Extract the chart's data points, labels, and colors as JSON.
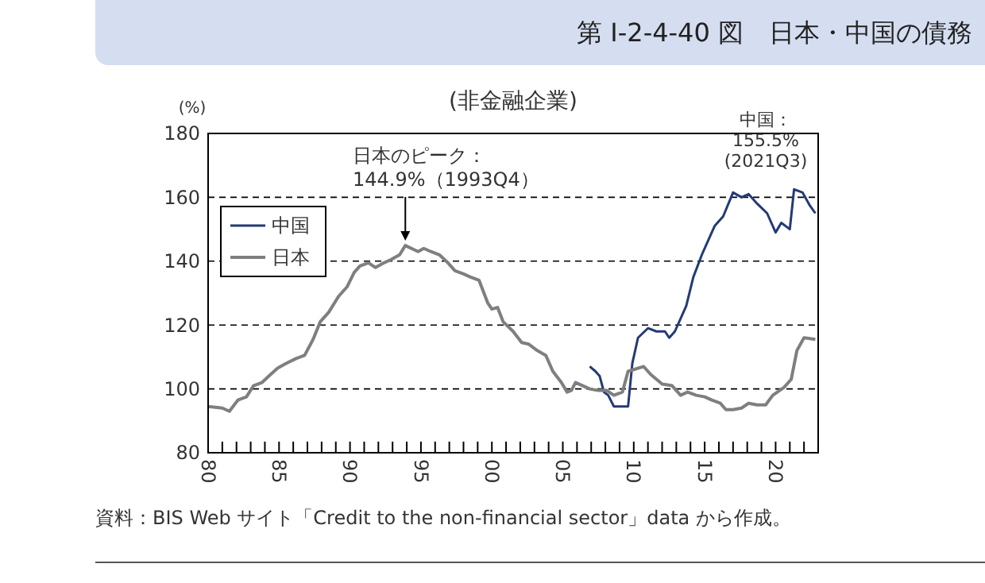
{
  "chart_data": {
    "type": "line",
    "title": "第 I-2-4-40 図　日本・中国の債務",
    "subtitle": "(非金融企業)",
    "ylabel": "(%)",
    "xlim": [
      1980,
      2023
    ],
    "ylim": [
      80,
      180
    ],
    "yticks": [
      80,
      100,
      120,
      140,
      160,
      180
    ],
    "xticks": [
      {
        "value": 1980,
        "label": "80"
      },
      {
        "value": 1981,
        "label": null
      },
      {
        "value": 1982,
        "label": null
      },
      {
        "value": 1983,
        "label": null
      },
      {
        "value": 1984,
        "label": null
      },
      {
        "value": 1985,
        "label": "85"
      },
      {
        "value": 1986,
        "label": null
      },
      {
        "value": 1987,
        "label": null
      },
      {
        "value": 1988,
        "label": null
      },
      {
        "value": 1989,
        "label": null
      },
      {
        "value": 1990,
        "label": "90"
      },
      {
        "value": 1991,
        "label": null
      },
      {
        "value": 1992,
        "label": null
      },
      {
        "value": 1993,
        "label": null
      },
      {
        "value": 1994,
        "label": null
      },
      {
        "value": 1995,
        "label": "95"
      },
      {
        "value": 1996,
        "label": null
      },
      {
        "value": 1997,
        "label": null
      },
      {
        "value": 1998,
        "label": null
      },
      {
        "value": 1999,
        "label": null
      },
      {
        "value": 2000,
        "label": "00"
      },
      {
        "value": 2001,
        "label": null
      },
      {
        "value": 2002,
        "label": null
      },
      {
        "value": 2003,
        "label": null
      },
      {
        "value": 2004,
        "label": null
      },
      {
        "value": 2005,
        "label": "05"
      },
      {
        "value": 2006,
        "label": null
      },
      {
        "value": 2007,
        "label": null
      },
      {
        "value": 2008,
        "label": null
      },
      {
        "value": 2009,
        "label": null
      },
      {
        "value": 2010,
        "label": "10"
      },
      {
        "value": 2011,
        "label": null
      },
      {
        "value": 2012,
        "label": null
      },
      {
        "value": 2013,
        "label": null
      },
      {
        "value": 2014,
        "label": null
      },
      {
        "value": 2015,
        "label": "15"
      },
      {
        "value": 2016,
        "label": null
      },
      {
        "value": 2017,
        "label": null
      },
      {
        "value": 2018,
        "label": null
      },
      {
        "value": 2019,
        "label": null
      },
      {
        "value": 2020,
        "label": "20"
      },
      {
        "value": 2021,
        "label": null
      },
      {
        "value": 2022,
        "label": null
      }
    ],
    "grid": "y",
    "legend": "top left",
    "line_style": "solid",
    "series": [
      {
        "name": "中国",
        "color": "#233a75",
        "x": [
          2006.9,
          2007.3,
          2007.6,
          2007.9,
          2008.2,
          2008.6,
          2009.2,
          2009.6,
          2009.9,
          2010.3,
          2011,
          2011.6,
          2012.2,
          2012.5,
          2012.9,
          2013.7,
          2014.2,
          2014.8,
          2015.1,
          2015.7,
          2016.3,
          2017,
          2017.6,
          2018.1,
          2018.7,
          2019.4,
          2020,
          2020.4,
          2021,
          2021.3,
          2021.9,
          2022.4,
          2022.8
        ],
        "values": [
          107,
          105.5,
          104,
          99,
          98,
          94.5,
          94.5,
          94.5,
          108,
          116,
          119,
          118,
          118,
          116,
          118,
          126,
          135,
          142,
          145,
          151,
          154,
          161.5,
          160,
          161,
          158,
          155,
          149,
          152,
          150,
          162.5,
          161.5,
          157.5,
          155
        ]
      },
      {
        "name": "日本",
        "color": "#7f7f7f",
        "x": [
          1980,
          1981,
          1981.5,
          1982.1,
          1982.7,
          1983.2,
          1983.8,
          1984.4,
          1984.9,
          1985.5,
          1986.2,
          1986.8,
          1987.4,
          1987.9,
          1988.5,
          1989.2,
          1989.8,
          1990.3,
          1990.7,
          1991.3,
          1991.8,
          1992.4,
          1992.9,
          1993.5,
          1993.9,
          1994.8,
          1995.2,
          1995.7,
          1996.3,
          1996.9,
          1997.4,
          1998,
          1998.5,
          1999.1,
          1999.7,
          2000,
          2000.4,
          2000.8,
          2001.5,
          2002.1,
          2002.6,
          2003.2,
          2003.8,
          2004.3,
          2004.9,
          2005.3,
          2005.6,
          2005.9,
          2006.4,
          2006.9,
          2007.5,
          2008.1,
          2008.6,
          2009.2,
          2009.6,
          2010.7,
          2011.2,
          2012,
          2012.7,
          2013.3,
          2013.8,
          2014.4,
          2015,
          2015.5,
          2016.1,
          2016.5,
          2017,
          2017.6,
          2018.1,
          2018.7,
          2019.3,
          2019.8,
          2020.6,
          2021.1,
          2021.5,
          2022,
          2022.8
        ],
        "values": [
          94.5,
          94,
          93,
          96.5,
          97.5,
          101,
          102,
          104.5,
          106.5,
          108,
          109.5,
          110.5,
          115.5,
          121,
          124,
          129,
          132,
          136.5,
          138.5,
          139.5,
          138,
          139.5,
          140.5,
          142,
          144.9,
          143,
          144,
          143,
          142,
          139.5,
          137,
          136,
          135,
          134,
          127,
          125,
          125.5,
          121,
          118,
          114.5,
          114,
          112,
          110.5,
          105.5,
          102,
          99,
          99.5,
          102,
          101,
          100,
          99.5,
          99.5,
          98,
          99,
          105.5,
          107,
          104.5,
          101.5,
          101,
          98,
          99,
          98,
          97.5,
          96.5,
          95.5,
          93.5,
          93.5,
          94,
          95.5,
          95,
          95,
          98,
          100.5,
          103,
          112,
          116,
          115.5
        ]
      }
    ],
    "annotations": [
      {
        "text": "日本のピーク：\n144.9%（1993Q4）",
        "x": 1993.9,
        "y": 144.9
      },
      "中国：\n155.5%\n(2021Q3)",
      "資料：BIS Web サイト「Credit to the non-financial sector」data から作成。"
    ]
  }
}
